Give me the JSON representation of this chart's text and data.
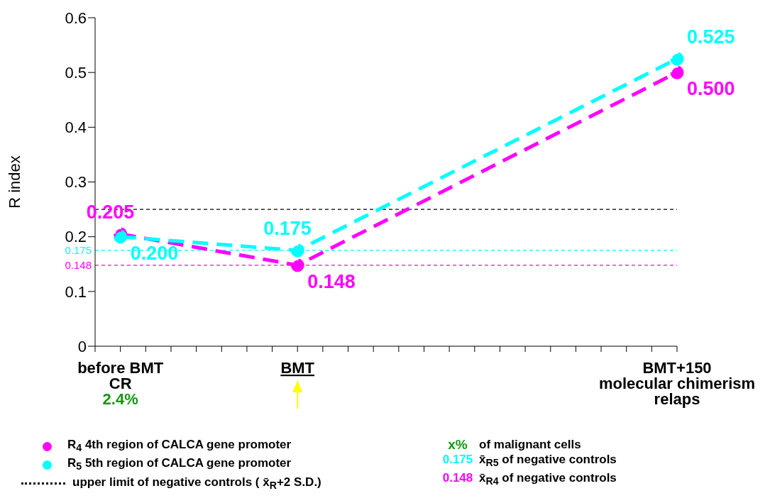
{
  "chart_data": {
    "type": "line",
    "ylabel": "R index",
    "categories": [
      null,
      "before BMT\nCR",
      null,
      null,
      null,
      null,
      null,
      null,
      "BMT",
      null,
      null,
      null,
      null,
      null,
      null,
      null,
      null,
      null,
      null,
      null,
      null,
      null,
      null,
      "BMT+150\nmolecular chimerism\nrelaps"
    ],
    "series": [
      {
        "name": "R$_{4}$  4th region of CALCA gene promoter",
        "color": "#ff00ff",
        "values": [
          null,
          0.205,
          null,
          null,
          null,
          null,
          null,
          null,
          0.148,
          null,
          null,
          null,
          null,
          null,
          null,
          null,
          null,
          null,
          null,
          null,
          null,
          null,
          null,
          0.5
        ],
        "value_labels": [
          null,
          "0.205",
          null,
          null,
          null,
          null,
          null,
          null,
          "0.148",
          null,
          null,
          null,
          null,
          null,
          null,
          null,
          null,
          null,
          null,
          null,
          null,
          null,
          null,
          "0.500"
        ]
      },
      {
        "name": "R$_{5}$  5th region of CALCA gene promoter",
        "color": "#00ffff",
        "values": [
          null,
          0.2,
          null,
          null,
          null,
          null,
          null,
          null,
          0.175,
          null,
          null,
          null,
          null,
          null,
          null,
          null,
          null,
          null,
          null,
          null,
          null,
          null,
          null,
          0.525
        ],
        "value_labels": [
          null,
          "0.200",
          null,
          null,
          null,
          null,
          null,
          null,
          "0.175",
          null,
          null,
          null,
          null,
          null,
          null,
          null,
          null,
          null,
          null,
          null,
          null,
          null,
          null,
          "0.525"
        ]
      }
    ],
    "ylim": [
      0,
      0.6
    ],
    "yticks": [
      0,
      0.1,
      0.2,
      0.3,
      0.4,
      0.5,
      0.6
    ],
    "ref_lines": [
      {
        "axis": "y",
        "value": 0.25,
        "label": null,
        "color": "#000000",
        "line_style": "dashed"
      },
      {
        "axis": "y",
        "value": 0.175,
        "label": "0.175",
        "color": "#00ffff",
        "line_style": "dashed"
      },
      {
        "axis": "y",
        "value": 0.148,
        "label": "0.148",
        "color": "#ff00ff",
        "line_style": "dashed"
      }
    ],
    "annotations": [
      "2.4%",
      "x%",
      "of malignant cells",
      "upper limit of negative controls ( x̄$_{R}$+2 S.D.)",
      "x̄$_{R5}$ of negative controls",
      "x̄$_{R4}$ of negative controls"
    ],
    "marker": "circle",
    "line_style": "dashed",
    "grid": false,
    "legend": "bottom"
  }
}
